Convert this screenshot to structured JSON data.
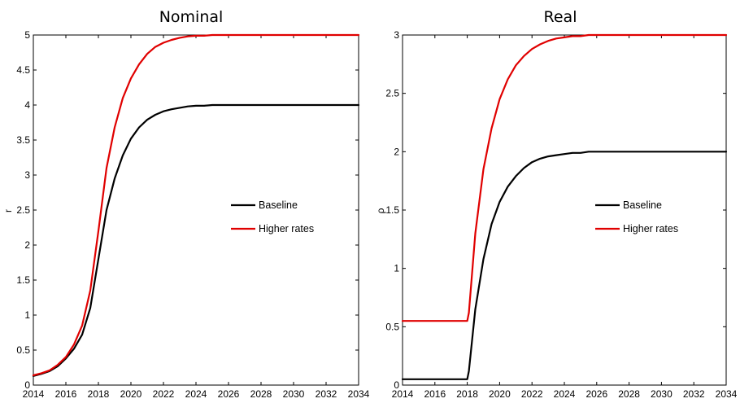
{
  "chart_data": [
    {
      "type": "line",
      "title": "Nominal",
      "xlabel": "",
      "ylabel": "r",
      "xlim": [
        2014,
        2034
      ],
      "ylim": [
        0,
        5
      ],
      "xticks": [
        "2014",
        "2016",
        "2018",
        "2020",
        "2022",
        "2024",
        "2026",
        "2028",
        "2030",
        "2032",
        "2034"
      ],
      "yticks": [
        "0",
        "0.5",
        "1",
        "1.5",
        "2",
        "2.5",
        "3",
        "3.5",
        "4",
        "4.5",
        "5"
      ],
      "legend_position": "center-right",
      "x": [
        2014,
        2014.5,
        2015,
        2015.5,
        2016,
        2016.5,
        2017,
        2017.5,
        2018,
        2018.5,
        2019,
        2019.5,
        2020,
        2020.5,
        2021,
        2021.5,
        2022,
        2022.5,
        2023,
        2023.5,
        2024,
        2024.5,
        2025,
        2025.5,
        2026,
        2027,
        2028,
        2029,
        2030,
        2031,
        2032,
        2033,
        2034
      ],
      "series": [
        {
          "name": "Baseline",
          "color": "#000000",
          "values": [
            0.13,
            0.16,
            0.2,
            0.27,
            0.38,
            0.52,
            0.72,
            1.1,
            1.8,
            2.5,
            2.95,
            3.28,
            3.52,
            3.68,
            3.79,
            3.86,
            3.91,
            3.94,
            3.96,
            3.98,
            3.99,
            3.99,
            4.0,
            4.0,
            4.0,
            4.0,
            4.0,
            4.0,
            4.0,
            4.0,
            4.0,
            4.0,
            4.0
          ]
        },
        {
          "name": "Higher rates",
          "color": "#e00000",
          "values": [
            0.14,
            0.17,
            0.21,
            0.29,
            0.4,
            0.58,
            0.85,
            1.35,
            2.2,
            3.1,
            3.68,
            4.1,
            4.38,
            4.58,
            4.73,
            4.83,
            4.89,
            4.93,
            4.96,
            4.98,
            4.99,
            4.99,
            5.0,
            5.0,
            5.0,
            5.0,
            5.0,
            5.0,
            5.0,
            5.0,
            5.0,
            5.0,
            5.0
          ]
        }
      ]
    },
    {
      "type": "line",
      "title": "Real",
      "xlabel": "",
      "ylabel": "ρ",
      "xlim": [
        2014,
        2034
      ],
      "ylim": [
        0,
        3
      ],
      "xticks": [
        "2014",
        "2016",
        "2018",
        "2020",
        "2022",
        "2024",
        "2026",
        "2028",
        "2030",
        "2032",
        "2034"
      ],
      "yticks": [
        "0",
        "0.5",
        "1",
        "1.5",
        "2",
        "2.5",
        "3"
      ],
      "legend_position": "center-right",
      "x": [
        2014,
        2015,
        2016,
        2017,
        2018,
        2018.1,
        2018.5,
        2019,
        2019.5,
        2020,
        2020.5,
        2021,
        2021.5,
        2022,
        2022.5,
        2023,
        2023.5,
        2024,
        2024.5,
        2025,
        2025.5,
        2026,
        2027,
        2028,
        2029,
        2030,
        2031,
        2032,
        2033,
        2034
      ],
      "series": [
        {
          "name": "Baseline",
          "color": "#000000",
          "values": [
            0.05,
            0.05,
            0.05,
            0.05,
            0.05,
            0.12,
            0.65,
            1.08,
            1.38,
            1.57,
            1.7,
            1.79,
            1.86,
            1.91,
            1.94,
            1.96,
            1.97,
            1.98,
            1.99,
            1.99,
            2.0,
            2.0,
            2.0,
            2.0,
            2.0,
            2.0,
            2.0,
            2.0,
            2.0,
            2.0
          ]
        },
        {
          "name": "Higher rates",
          "color": "#e00000",
          "values": [
            0.55,
            0.55,
            0.55,
            0.55,
            0.55,
            0.62,
            1.3,
            1.85,
            2.2,
            2.45,
            2.62,
            2.74,
            2.82,
            2.88,
            2.92,
            2.95,
            2.97,
            2.98,
            2.99,
            2.99,
            3.0,
            3.0,
            3.0,
            3.0,
            3.0,
            3.0,
            3.0,
            3.0,
            3.0,
            3.0
          ]
        }
      ]
    }
  ]
}
